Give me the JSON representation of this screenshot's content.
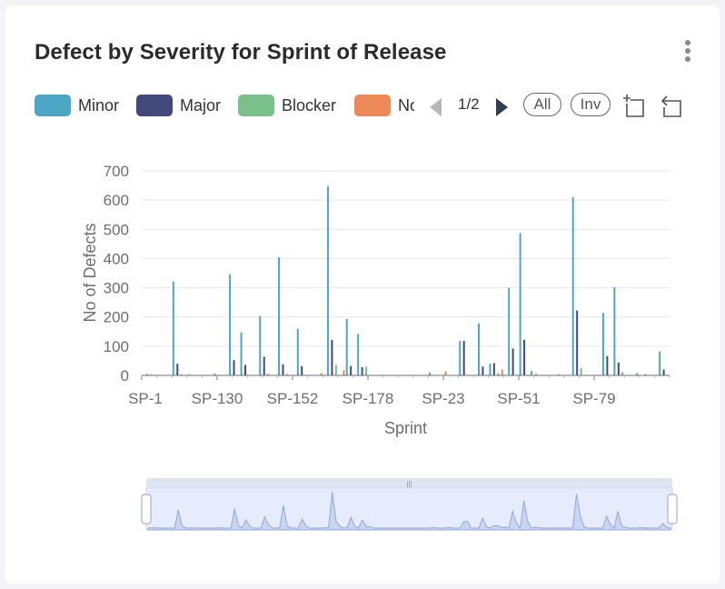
{
  "card": {
    "title": "Defect by Severity for Sprint of Release",
    "menu_icon": "more-vertical-icon"
  },
  "legend": {
    "items": [
      {
        "label": "Minor",
        "color": "#4ea6c7"
      },
      {
        "label": "Major",
        "color": "#414a7b"
      },
      {
        "label": "Blocker",
        "color": "#79c08a"
      },
      {
        "label": "Normal",
        "color": "#ee8a57"
      }
    ],
    "pager": {
      "text": "1/2",
      "prev_icon": "triangle-left-icon",
      "next_icon": "triangle-right-icon"
    },
    "all_label": "All",
    "inverse_label": "Inv",
    "zoom_icon": "data-zoom-icon",
    "restore_icon": "zoom-restore-icon"
  },
  "chart_data": {
    "type": "bar",
    "title": "",
    "xlabel": "Sprint",
    "ylabel": "No of Defects",
    "ylim": [
      0,
      700
    ],
    "yticks": [
      0,
      100,
      200,
      300,
      400,
      500,
      600,
      700
    ],
    "grid": true,
    "x_tick_labels": [
      "SP-1",
      "SP-130",
      "SP-152",
      "SP-178",
      "SP-23",
      "SP-51",
      "SP-79"
    ],
    "category_count": 140,
    "series": [
      {
        "name": "Minor",
        "color": "#4ea6c7",
        "points": [
          {
            "i": 8,
            "v": 322
          },
          {
            "i": 23,
            "v": 346
          },
          {
            "i": 26,
            "v": 147
          },
          {
            "i": 31,
            "v": 203
          },
          {
            "i": 36,
            "v": 404
          },
          {
            "i": 41,
            "v": 160
          },
          {
            "i": 49,
            "v": 648
          },
          {
            "i": 54,
            "v": 193
          },
          {
            "i": 57,
            "v": 142
          },
          {
            "i": 84,
            "v": 118
          },
          {
            "i": 89,
            "v": 178
          },
          {
            "i": 92,
            "v": 40
          },
          {
            "i": 97,
            "v": 300
          },
          {
            "i": 100,
            "v": 487
          },
          {
            "i": 114,
            "v": 610
          },
          {
            "i": 122,
            "v": 214
          },
          {
            "i": 125,
            "v": 302
          },
          {
            "i": 137,
            "v": 82
          },
          {
            "i": 1,
            "v": 5
          },
          {
            "i": 19,
            "v": 6
          },
          {
            "i": 76,
            "v": 10
          },
          {
            "i": 103,
            "v": 15
          },
          {
            "i": 131,
            "v": 8
          }
        ]
      },
      {
        "name": "Major",
        "color": "#414a7b",
        "points": [
          {
            "i": 9,
            "v": 40
          },
          {
            "i": 24,
            "v": 52
          },
          {
            "i": 27,
            "v": 36
          },
          {
            "i": 32,
            "v": 64
          },
          {
            "i": 37,
            "v": 38
          },
          {
            "i": 42,
            "v": 32
          },
          {
            "i": 50,
            "v": 122
          },
          {
            "i": 55,
            "v": 32
          },
          {
            "i": 58,
            "v": 28
          },
          {
            "i": 85,
            "v": 118
          },
          {
            "i": 90,
            "v": 30
          },
          {
            "i": 93,
            "v": 42
          },
          {
            "i": 98,
            "v": 92
          },
          {
            "i": 101,
            "v": 122
          },
          {
            "i": 115,
            "v": 222
          },
          {
            "i": 123,
            "v": 66
          },
          {
            "i": 126,
            "v": 44
          },
          {
            "i": 138,
            "v": 20
          }
        ]
      },
      {
        "name": "Blocker",
        "color": "#79c08a",
        "points": [
          {
            "i": 10,
            "v": 4
          },
          {
            "i": 33,
            "v": 6
          },
          {
            "i": 51,
            "v": 36
          },
          {
            "i": 59,
            "v": 30
          },
          {
            "i": 94,
            "v": 8
          },
          {
            "i": 116,
            "v": 26
          },
          {
            "i": 127,
            "v": 12
          }
        ]
      },
      {
        "name": "Normal",
        "color": "#ee8a57",
        "points": [
          {
            "i": 2,
            "v": 3
          },
          {
            "i": 12,
            "v": 4
          },
          {
            "i": 38,
            "v": 5
          },
          {
            "i": 47,
            "v": 8
          },
          {
            "i": 53,
            "v": 18
          },
          {
            "i": 80,
            "v": 14
          },
          {
            "i": 95,
            "v": 20
          },
          {
            "i": 104,
            "v": 6
          },
          {
            "i": 110,
            "v": 4
          },
          {
            "i": 133,
            "v": 5
          }
        ]
      }
    ],
    "zoom_range": [
      0,
      100
    ]
  }
}
